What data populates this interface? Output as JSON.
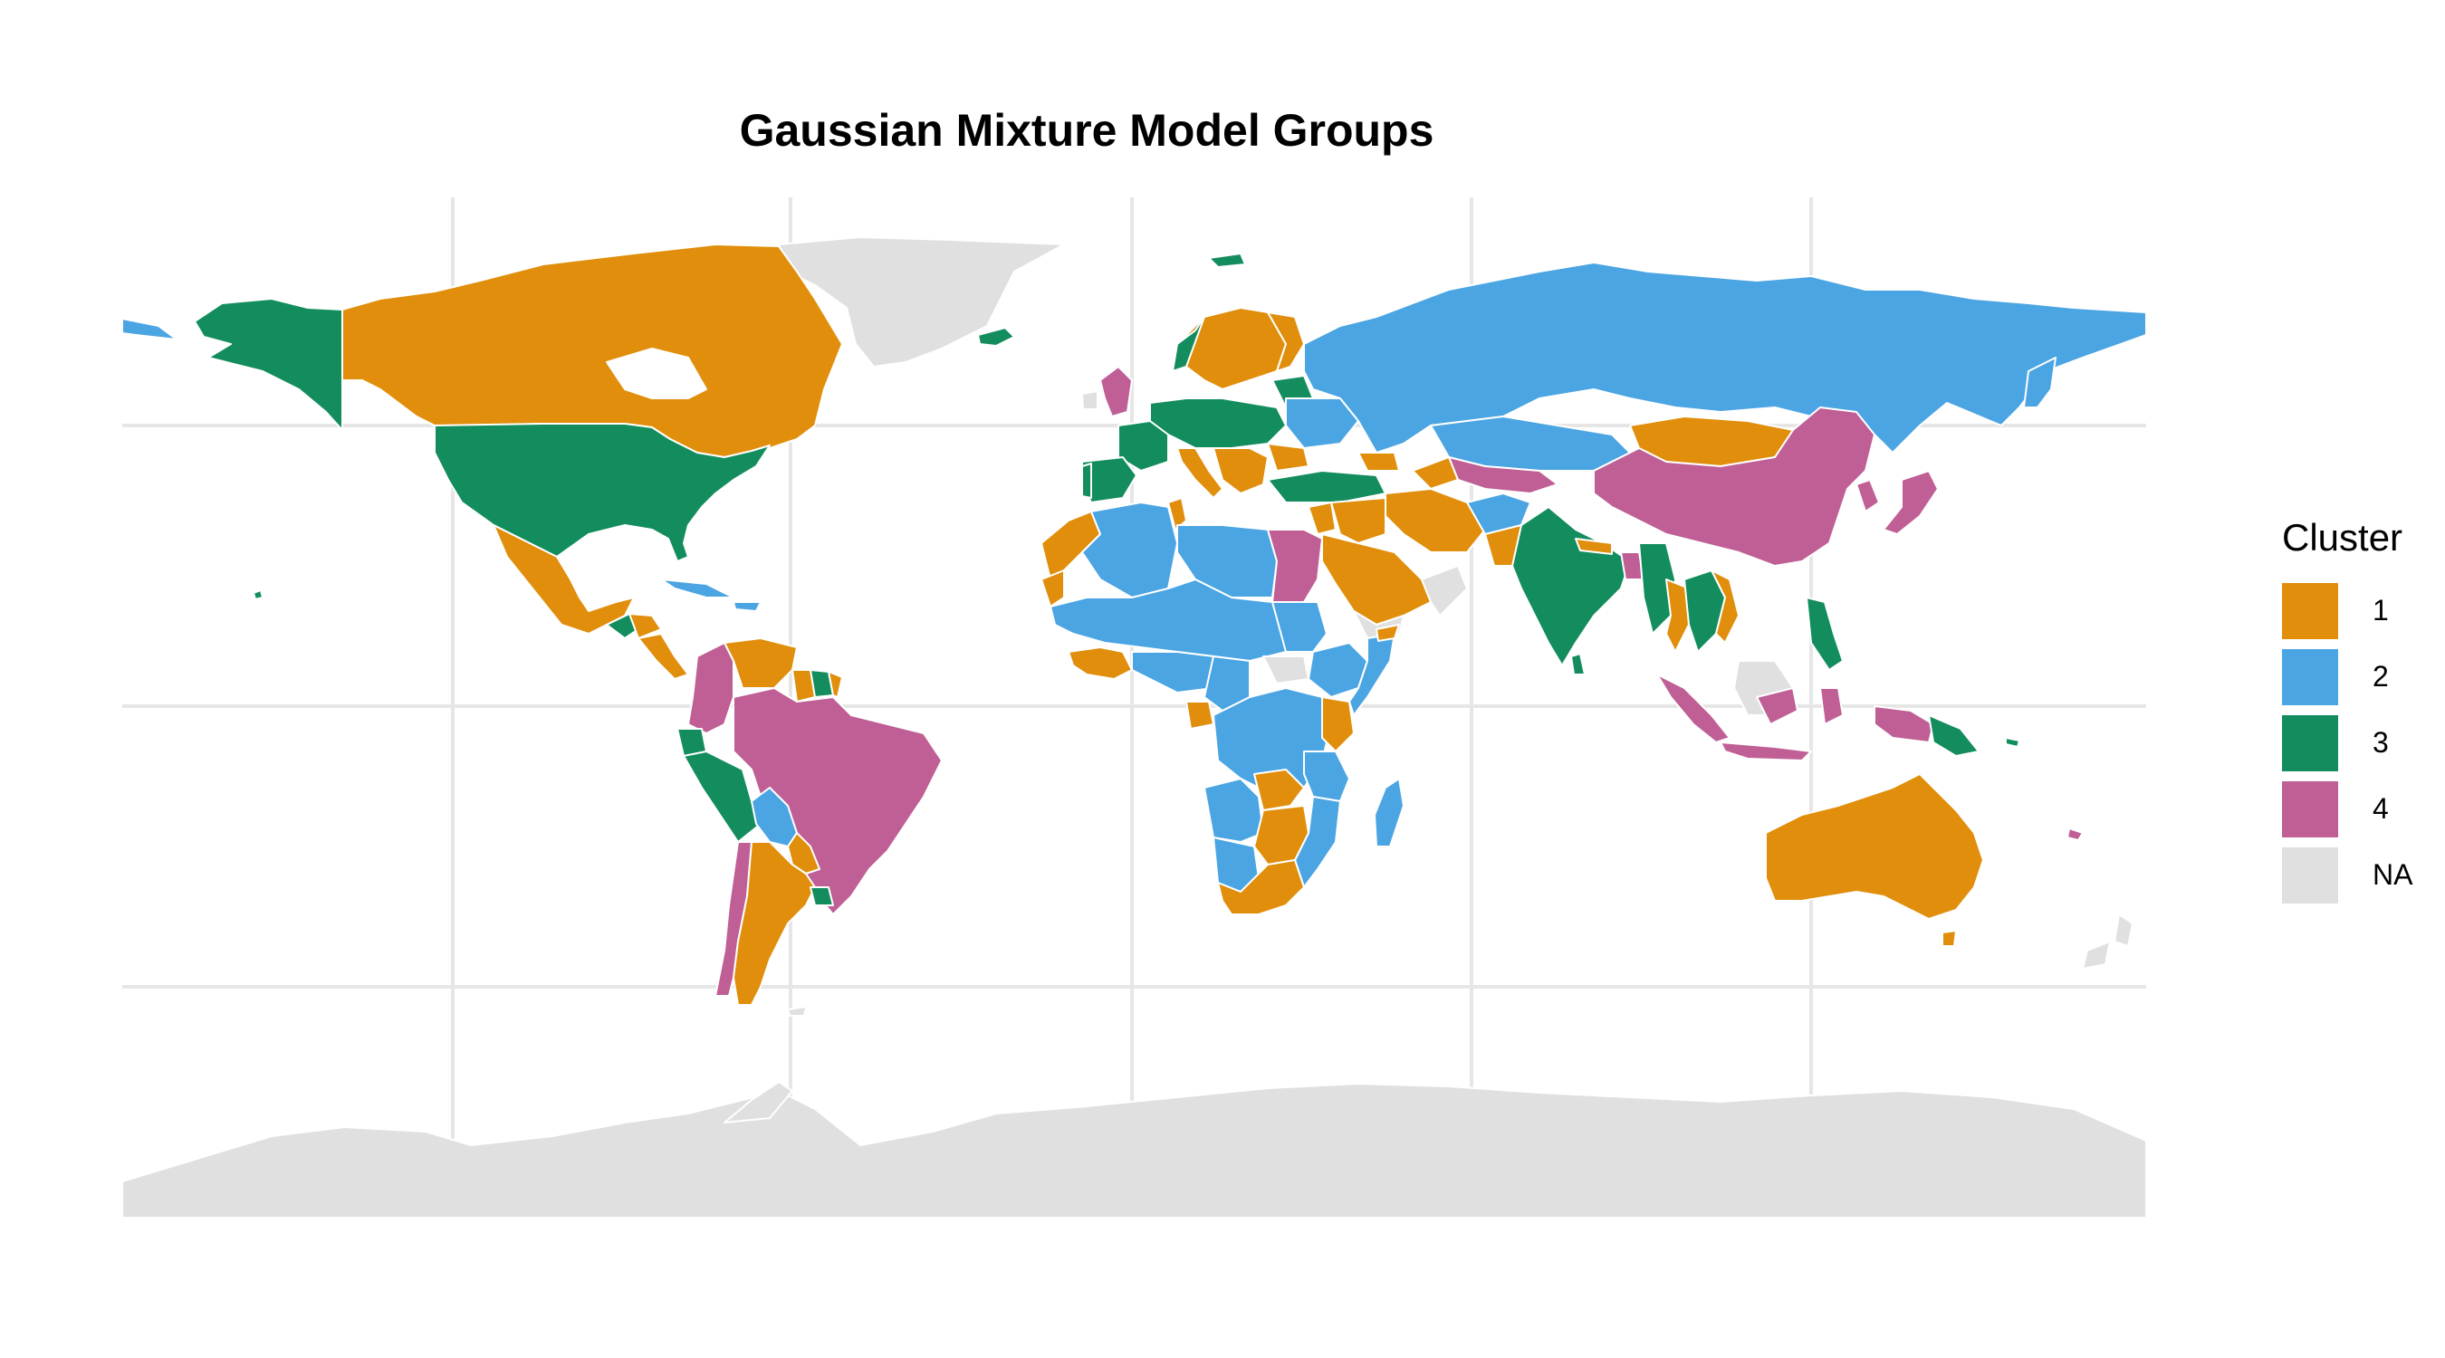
{
  "title": "Gaussian Mixture Model Groups",
  "legend": {
    "title": "Cluster",
    "items": [
      {
        "label": "1",
        "color": "#E08E0B"
      },
      {
        "label": "2",
        "color": "#4BA5E3"
      },
      {
        "label": "3",
        "color": "#138D5E"
      },
      {
        "label": "4",
        "color": "#BF5F95"
      },
      {
        "label": "NA",
        "color": "#E0E0E0"
      }
    ]
  },
  "colors": {
    "background": "#FFFFFF",
    "grid": "#E6E6E6",
    "border": "#FFFFFF"
  }
}
